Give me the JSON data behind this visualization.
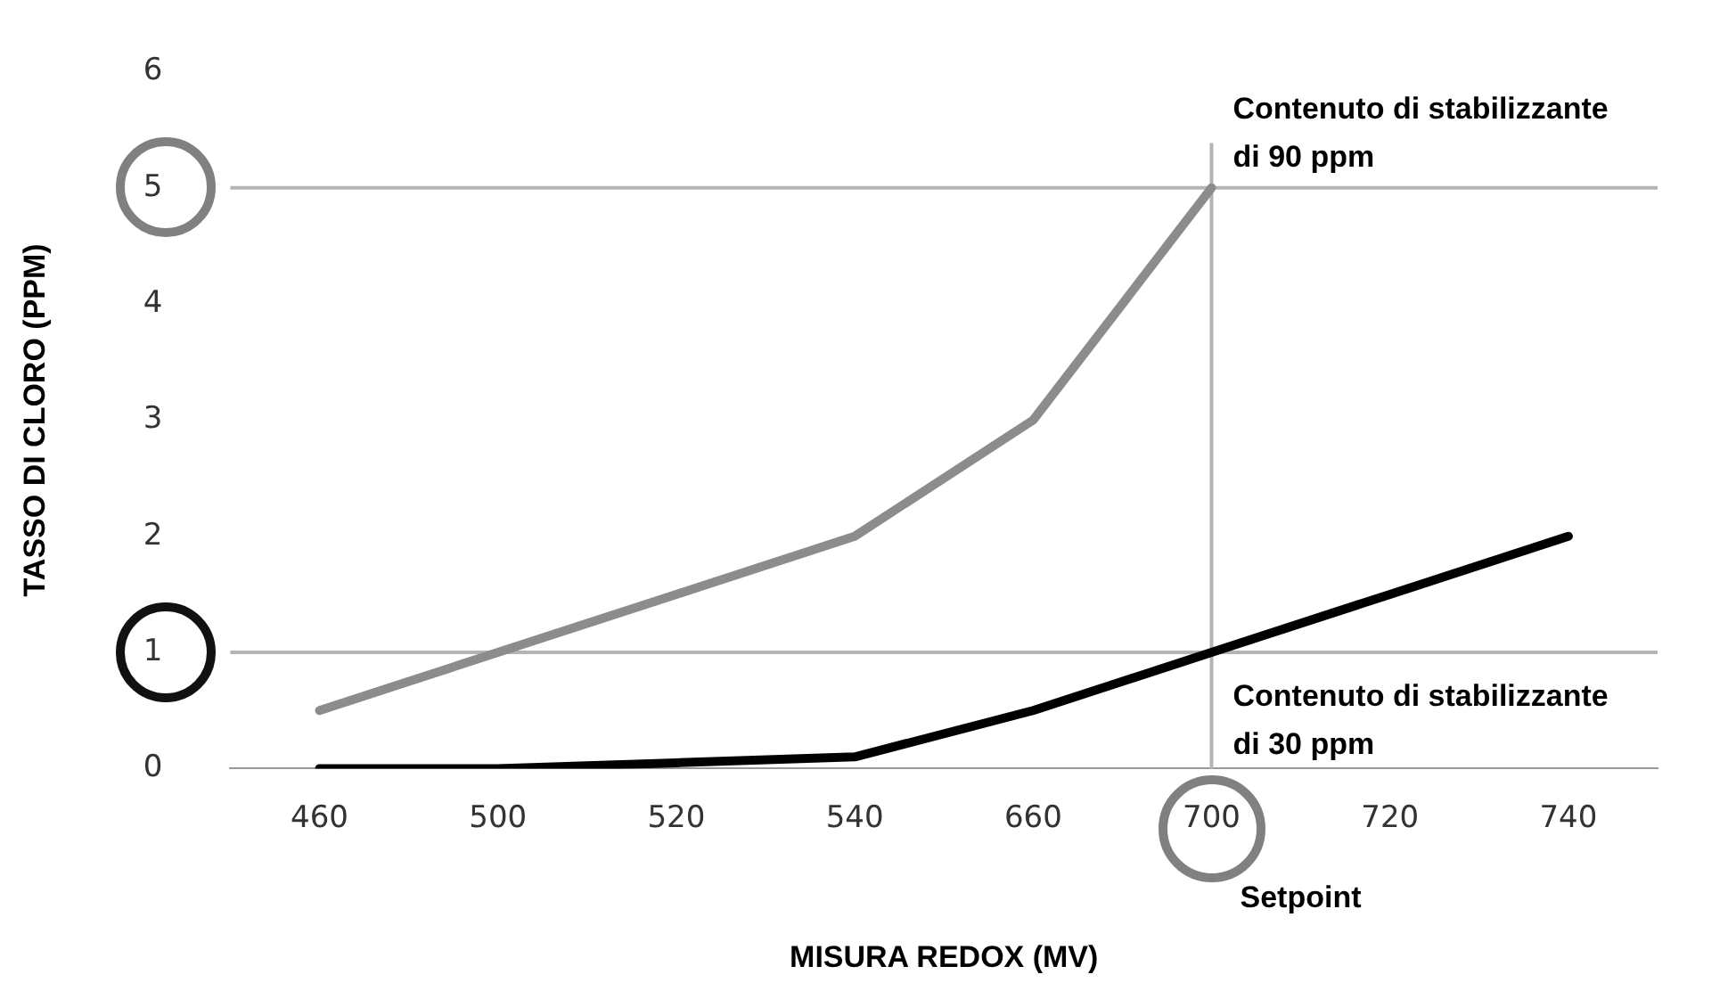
{
  "chart_data": {
    "type": "line",
    "xlabel": "MISURA REDOX (MV)",
    "ylabel": "TASSO DI CLORO (PPM)",
    "categories": [
      "460",
      "500",
      "520",
      "540",
      "660",
      "700",
      "720",
      "740"
    ],
    "series": [
      {
        "color": "#8c8c8c",
        "values": [
          0.5,
          1,
          1.5,
          2,
          3,
          5,
          null,
          null
        ]
      },
      {
        "color": "#000000",
        "values": [
          0,
          0,
          0.05,
          0.1,
          0.5,
          1,
          1.5,
          2
        ]
      }
    ],
    "ylim": [
      0,
      6
    ],
    "yticks": [
      0,
      1,
      2,
      3,
      4,
      5,
      6
    ],
    "grid": false,
    "legend": false,
    "marker": "none",
    "line_style": "solid",
    "ref_lines": [
      {
        "axis": "y",
        "value": 5,
        "color": "#b4b4b4"
      },
      {
        "axis": "y",
        "value": 1,
        "color": "#b4b4b4"
      },
      {
        "axis": "x",
        "value": "700",
        "color": "#b4b4b4"
      }
    ],
    "annotations": [
      {
        "text": "Contenuto di stabilizzante di 90 ppm",
        "x": "700",
        "y": 5
      },
      {
        "text": "Contenuto di stabilizzante di 30 ppm",
        "x": "700",
        "y": 1
      },
      "Setpoint"
    ]
  }
}
